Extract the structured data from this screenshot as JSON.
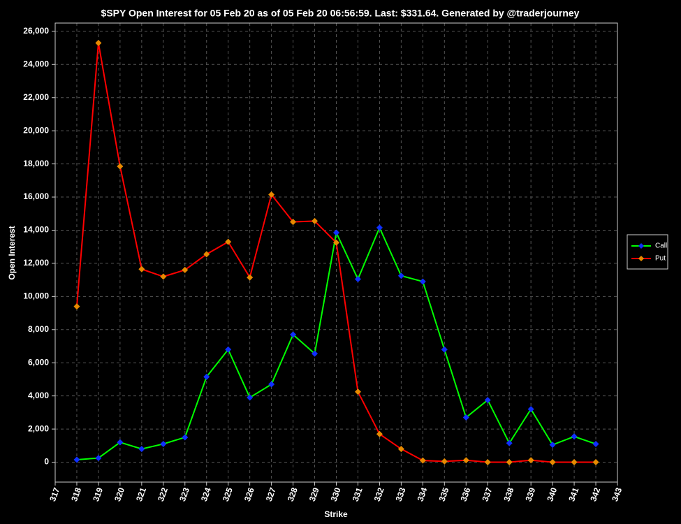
{
  "chart_data": {
    "type": "line",
    "title": "$SPY Open Interest for 05 Feb 20 as of 05 Feb 20 06:56:59.  Last: $331.64.  Generated by @traderjourney",
    "x_label": "Strike",
    "y_label": "Open Interest",
    "x": [
      318,
      319,
      320,
      321,
      322,
      323,
      324,
      325,
      326,
      327,
      328,
      329,
      330,
      331,
      332,
      333,
      334,
      335,
      336,
      337,
      338,
      339,
      340,
      341,
      342
    ],
    "series": [
      {
        "name": "Call",
        "color": "#00ff00",
        "marker_color": "#1030ff",
        "values": [
          150,
          250,
          1200,
          800,
          1100,
          1500,
          5150,
          6800,
          3900,
          4700,
          7700,
          6550,
          13850,
          11050,
          14150,
          11250,
          10900,
          6800,
          2700,
          3750,
          1150,
          3200,
          1050,
          1550,
          1100
        ]
      },
      {
        "name": "Put",
        "color": "#ff0000",
        "marker_color": "#e68a00",
        "values": [
          9400,
          25300,
          17850,
          11650,
          11200,
          11600,
          12550,
          13300,
          11150,
          16150,
          14500,
          14550,
          13250,
          4250,
          1700,
          800,
          100,
          50,
          120,
          0,
          0,
          120,
          0,
          0,
          0
        ]
      }
    ],
    "xlim": [
      317,
      343
    ],
    "xticks": [
      317,
      318,
      319,
      320,
      321,
      322,
      323,
      324,
      325,
      326,
      327,
      328,
      329,
      330,
      331,
      332,
      333,
      334,
      335,
      336,
      337,
      338,
      339,
      340,
      341,
      342,
      343
    ],
    "ylim": [
      -1200,
      26500
    ],
    "yticks": [
      0,
      {
        "value": 2000,
        "label": "2,000"
      },
      {
        "value": 4000,
        "label": "4,000"
      },
      {
        "value": 6000,
        "label": "6,000"
      },
      {
        "value": 8000,
        "label": "8,000"
      },
      {
        "value": 10000,
        "label": "10,000"
      },
      {
        "value": 12000,
        "label": "12,000"
      },
      {
        "value": 14000,
        "label": "14,000"
      },
      {
        "value": 16000,
        "label": "16,000"
      },
      {
        "value": 18000,
        "label": "18,000"
      },
      {
        "value": 20000,
        "label": "20,000"
      },
      {
        "value": 22000,
        "label": "22,000"
      },
      {
        "value": 24000,
        "label": "24,000"
      },
      {
        "value": 26000,
        "label": "26,000"
      }
    ],
    "grid": true,
    "legend": "right"
  }
}
